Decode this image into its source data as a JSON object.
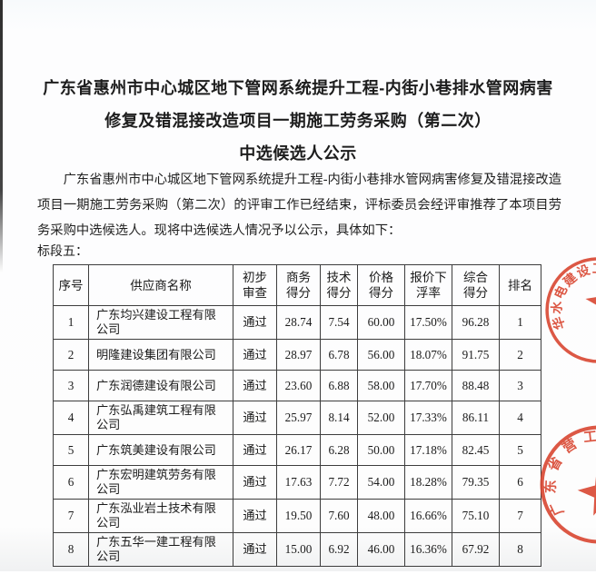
{
  "doc": {
    "title_lines": [
      "广东省惠州市中心城区地下管网系统提升工程-内街小巷排水管网病害",
      "修复及错混接改造项目一期施工劳务采购（第二次）",
      "中选候选人公示"
    ],
    "intro_paragraph": "广东省惠州市中心城区地下管网系统提升工程-内街小巷排水管网病害修复及错混接改造项目一期施工劳务采购（第二次）的评审工作已经结束，评标委员会经评审推荐了本项目劳务采购中选候选人。现将中选候选人情况予以公示，具体如下：",
    "section_label": "标段五："
  },
  "table": {
    "headers": [
      "序号",
      "供应商名称",
      "初步\n审查",
      "商务\n得分",
      "技术\n得分",
      "价格\n得分",
      "报价下\n浮率",
      "综合\n得分",
      "排名"
    ],
    "col_keys": [
      "seq",
      "supplier-name",
      "preliminary-review",
      "business-score",
      "technical-score",
      "price-score",
      "bid-discount-rate",
      "comprehensive-score",
      "rank"
    ],
    "rows": [
      {
        "cells": [
          "1",
          "广东均兴建设工程有限公司",
          "通过",
          "28.74",
          "7.54",
          "60.00",
          "17.50%",
          "96.28",
          "1"
        ]
      },
      {
        "cells": [
          "2",
          "明隆建设集团有限公司",
          "通过",
          "28.97",
          "6.78",
          "56.00",
          "18.07%",
          "91.75",
          "2"
        ]
      },
      {
        "cells": [
          "3",
          "广东润德建设有限公司",
          "通过",
          "23.60",
          "6.88",
          "58.00",
          "17.70%",
          "88.48",
          "3"
        ]
      },
      {
        "cells": [
          "4",
          "广东弘禹建筑工程有限公司",
          "通过",
          "25.97",
          "8.14",
          "52.00",
          "17.33%",
          "86.11",
          "4"
        ]
      },
      {
        "cells": [
          "5",
          "广东筑美建设有限公司",
          "通过",
          "26.17",
          "6.28",
          "50.00",
          "17.18%",
          "82.45",
          "5"
        ]
      },
      {
        "cells": [
          "6",
          "广东宏明建筑劳务有限公司",
          "通过",
          "17.63",
          "7.72",
          "54.00",
          "18.28%",
          "79.35",
          "6"
        ]
      },
      {
        "cells": [
          "7",
          "广东泓业岩土技术有限公司",
          "通过",
          "19.50",
          "7.60",
          "48.00",
          "16.66%",
          "75.10",
          "7"
        ]
      },
      {
        "cells": [
          "8",
          "广东五华一建工程有限公司",
          "通过",
          "15.00",
          "6.92",
          "46.00",
          "16.36%",
          "67.92",
          "8"
        ]
      }
    ]
  },
  "seals": {
    "color": "#d8402a",
    "top_seal_text": "华水电建设工程有限公司",
    "bottom_seal_text": "广东省营工程项目部"
  }
}
